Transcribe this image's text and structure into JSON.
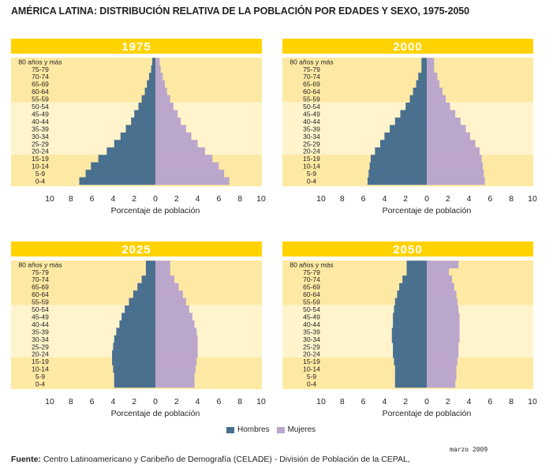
{
  "title": "AMÉRICA LATINA: DISTRIBUCIÓN RELATIVA DE LA POBLACIÓN POR EDADES Y SEXO, 1975-2050",
  "legend": {
    "men": "Hombres",
    "women": "Mujeres"
  },
  "source": {
    "label": "Fuente:",
    "text": " Centro Latinoamericano y Caribeño de Demografía (CELADE) - División de Población de la CEPAL,"
  },
  "date": "marzo 2009",
  "colors": {
    "men": "#4a708f",
    "women": "#bba6cc",
    "header": "#ffd200",
    "band_dark": "#fde9a3",
    "band_light": "#fff4cc"
  },
  "chart_data": [
    {
      "type": "bar",
      "title": "1975",
      "xlabel": "Porcentaje de población",
      "xticks": [
        "10",
        "8",
        "6",
        "4",
        "2",
        "0",
        "2",
        "4",
        "6",
        "8",
        "10"
      ],
      "xlim": [
        -10,
        10
      ],
      "categories": [
        "80 años y más",
        "75-79",
        "70-74",
        "65-69",
        "60-64",
        "55-59",
        "50-54",
        "45-49",
        "40-44",
        "35-39",
        "30-34",
        "25-29",
        "20-24",
        "15-19",
        "10-14",
        "5-9",
        "0-4"
      ],
      "series": [
        {
          "name": "Hombres",
          "values": [
            0.3,
            0.4,
            0.6,
            0.8,
            1.0,
            1.3,
            1.6,
            2.0,
            2.3,
            2.8,
            3.3,
            3.9,
            4.6,
            5.4,
            6.1,
            6.6,
            7.2
          ]
        },
        {
          "name": "Mujeres",
          "values": [
            0.4,
            0.5,
            0.7,
            0.9,
            1.1,
            1.4,
            1.7,
            2.1,
            2.4,
            2.9,
            3.4,
            4.0,
            4.7,
            5.4,
            6.0,
            6.5,
            7.0
          ]
        }
      ]
    },
    {
      "type": "bar",
      "title": "2000",
      "xlabel": "Porcentaje de población",
      "xticks": [
        "10",
        "8",
        "6",
        "4",
        "2",
        "0",
        "2",
        "4",
        "6",
        "8",
        "10"
      ],
      "xlim": [
        -10,
        10
      ],
      "categories": [
        "80 años y más",
        "75-79",
        "70-74",
        "65-69",
        "60-64",
        "55-59",
        "50-54",
        "45-49",
        "40-44",
        "35-39",
        "30-34",
        "25-29",
        "20-24",
        "15-19",
        "10-14",
        "5-9",
        "0-4"
      ],
      "series": [
        {
          "name": "Hombres",
          "values": [
            0.5,
            0.5,
            0.8,
            1.0,
            1.3,
            1.6,
            2.0,
            2.5,
            3.0,
            3.5,
            4.0,
            4.4,
            4.9,
            5.3,
            5.4,
            5.5,
            5.6
          ]
        },
        {
          "name": "Mujeres",
          "values": [
            0.7,
            0.7,
            1.0,
            1.2,
            1.5,
            1.8,
            2.2,
            2.7,
            3.2,
            3.7,
            4.1,
            4.6,
            5.0,
            5.2,
            5.3,
            5.4,
            5.5
          ]
        }
      ]
    },
    {
      "type": "bar",
      "title": "2025",
      "xlabel": "Porcentaje de población",
      "xticks": [
        "10",
        "8",
        "6",
        "4",
        "2",
        "0",
        "2",
        "4",
        "6",
        "8",
        "10"
      ],
      "xlim": [
        -10,
        10
      ],
      "categories": [
        "80 años y más",
        "75-79",
        "70-74",
        "65-69",
        "60-64",
        "55-59",
        "50-54",
        "45-49",
        "40-44",
        "35-39",
        "30-34",
        "25-29",
        "20-24",
        "15-19",
        "10-14",
        "5-9",
        "0-4"
      ],
      "series": [
        {
          "name": "Hombres",
          "values": [
            0.9,
            0.9,
            1.3,
            1.7,
            2.1,
            2.5,
            2.9,
            3.2,
            3.4,
            3.7,
            3.9,
            4.0,
            4.1,
            4.1,
            4.0,
            3.9,
            3.9
          ]
        },
        {
          "name": "Mujeres",
          "values": [
            1.4,
            1.4,
            1.8,
            2.2,
            2.6,
            2.9,
            3.2,
            3.5,
            3.7,
            3.9,
            4.0,
            4.0,
            4.0,
            3.9,
            3.8,
            3.7,
            3.7
          ]
        }
      ]
    },
    {
      "type": "bar",
      "title": "2050",
      "xlabel": "Porcentaje de población",
      "xticks": [
        "10",
        "8",
        "6",
        "4",
        "2",
        "0",
        "2",
        "4",
        "6",
        "8",
        "10"
      ],
      "xlim": [
        -10,
        10
      ],
      "categories": [
        "80 años y más",
        "75-79",
        "70-74",
        "65-69",
        "60-64",
        "55-59",
        "50-54",
        "45-49",
        "40-44",
        "35-39",
        "30-34",
        "25-29",
        "20-24",
        "15-19",
        "10-14",
        "5-9",
        "0-4"
      ],
      "series": [
        {
          "name": "Hombres",
          "values": [
            1.9,
            1.9,
            2.3,
            2.6,
            2.8,
            3.0,
            3.1,
            3.2,
            3.2,
            3.3,
            3.3,
            3.2,
            3.2,
            3.1,
            3.0,
            3.0,
            3.0
          ]
        },
        {
          "name": "Mujeres",
          "values": [
            3.0,
            2.1,
            2.4,
            2.6,
            2.8,
            2.9,
            3.0,
            3.1,
            3.1,
            3.1,
            3.1,
            3.0,
            3.0,
            2.9,
            2.8,
            2.8,
            2.7
          ]
        }
      ]
    }
  ]
}
